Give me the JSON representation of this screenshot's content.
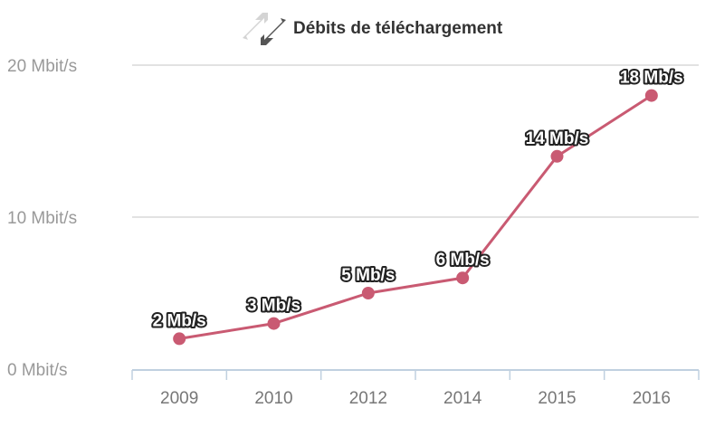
{
  "chart_data": {
    "type": "line",
    "title": "Débits de téléchargement",
    "title_icon": "download-upload-arrows-icon",
    "categories": [
      "2009",
      "2010",
      "2012",
      "2014",
      "2015",
      "2016"
    ],
    "series": [
      {
        "values": [
          2,
          3,
          5,
          6,
          14,
          18
        ],
        "data_labels": [
          "2 Mb/s",
          "3 Mb/s",
          "5 Mb/s",
          "6 Mb/s",
          "14 Mb/s",
          "18 Mb/s"
        ],
        "color": "#c95a72"
      }
    ],
    "ylim": [
      0,
      20
    ],
    "yticks": [
      0,
      10,
      20
    ],
    "ytick_labels": [
      "0 Mbit/s",
      "10 Mbit/s",
      "20 Mbit/s"
    ],
    "grid": true,
    "colors": {
      "grid": "#d8d8d8",
      "axis": "#c0d0e0",
      "series": "#c95a72"
    }
  }
}
